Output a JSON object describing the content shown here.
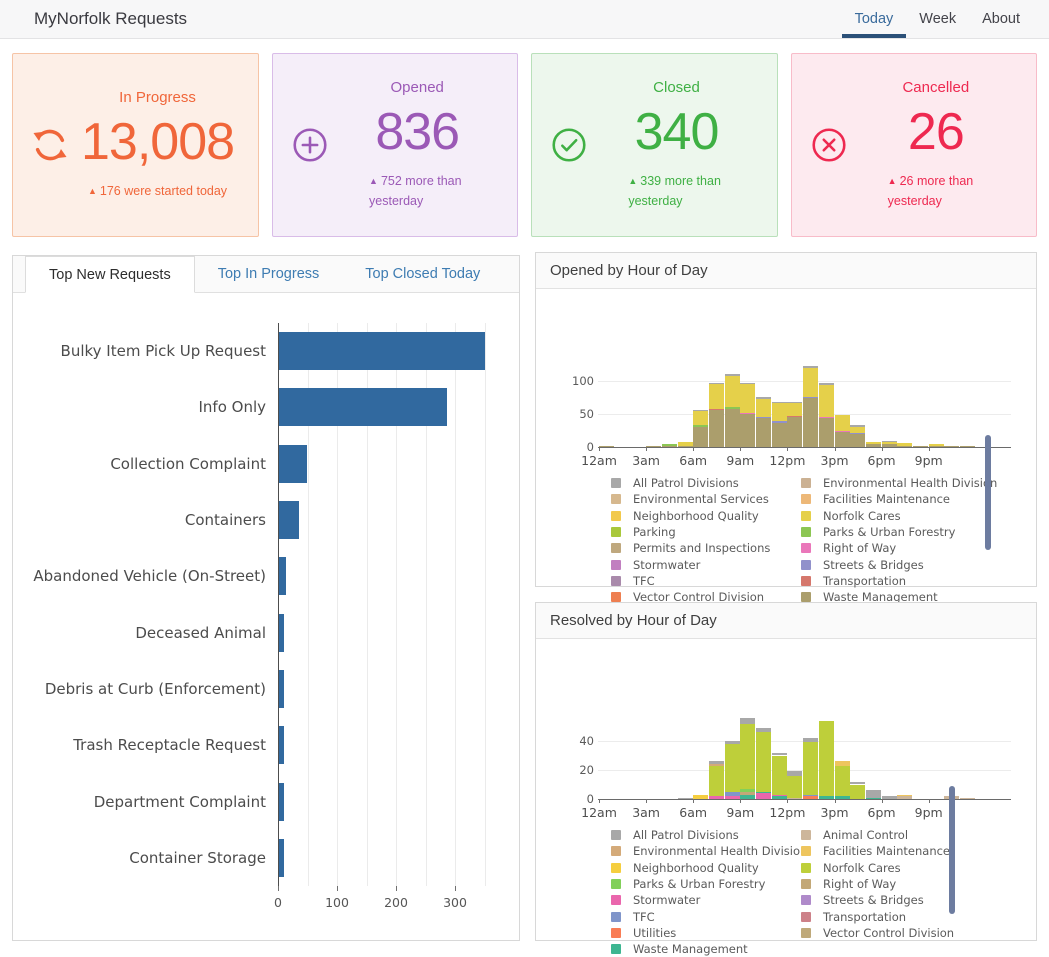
{
  "header": {
    "title": "MyNorfolk Requests",
    "tabs": [
      {
        "label": "Today",
        "active": true
      },
      {
        "label": "Week",
        "active": false
      },
      {
        "label": "About",
        "active": false
      }
    ]
  },
  "cards": [
    {
      "title": "In Progress",
      "value": "13,008",
      "note": "176 were started today",
      "icon": "refresh-icon",
      "color": "#f0663a",
      "bg": "#fdefe7",
      "border": "#f6c4a6"
    },
    {
      "title": "Opened",
      "value": "836",
      "note": "752 more than yesterday",
      "icon": "plus-circle-icon",
      "color": "#9b59b6",
      "bg": "#f5eef9",
      "border": "#d9bce8"
    },
    {
      "title": "Closed",
      "value": "340",
      "note": "339 more than yesterday",
      "icon": "check-circle-icon",
      "color": "#3fb044",
      "bg": "#edf7ed",
      "border": "#b9e0ba"
    },
    {
      "title": "Cancelled",
      "value": "26",
      "note": "26 more than yesterday",
      "icon": "x-circle-icon",
      "color": "#ee2950",
      "bg": "#fdeaef",
      "border": "#f8bcc9"
    }
  ],
  "left_panel": {
    "tabs": [
      {
        "label": "Top New Requests",
        "active": true
      },
      {
        "label": "Top In Progress",
        "active": false
      },
      {
        "label": "Top Closed Today",
        "active": false
      }
    ],
    "chart_data": {
      "type": "bar",
      "orientation": "horizontal",
      "categories": [
        "Bulky Item Pick Up Request",
        "Info Only",
        "Collection Complaint",
        "Containers",
        "Abandoned Vehicle (On-Street)",
        "Deceased Animal",
        "Debris at Curb (Enforcement)",
        "Trash Receptacle Request",
        "Department Complaint",
        "Container Storage"
      ],
      "values": [
        349,
        285,
        47,
        34,
        12,
        9,
        8,
        8,
        8,
        8
      ],
      "x_ticks": [
        0,
        100,
        200,
        300
      ],
      "x_max": 390,
      "grid_step": 50,
      "bar_color": "#31699f"
    }
  },
  "opened_panel": {
    "title": "Opened by Hour of Day",
    "palette": {
      "all_patrol": "#a8a8a8",
      "environmental_services": "#d6b88e",
      "neighborhood_quality": "#f2c94c",
      "parking": "#a9c83b",
      "permits_and_inspections": "#bfa87e",
      "stormwater": "#c17fc0",
      "tfc": "#a98aab",
      "vector_control": "#ee7f51",
      "env_health": "#cbb193",
      "facilities": "#edb878",
      "norfolk_cares": "#e5d04a",
      "parks": "#8cc653",
      "right_of_way": "#ea77ba",
      "streets_bridges": "#9191cb",
      "transportation": "#d5776c",
      "waste_management": "#ab9e6c"
    },
    "legend_columns": [
      [
        {
          "label": "All Patrol Divisions",
          "key": "all_patrol"
        },
        {
          "label": "Environmental Services",
          "key": "environmental_services"
        },
        {
          "label": "Neighborhood Quality",
          "key": "neighborhood_quality"
        },
        {
          "label": "Parking",
          "key": "parking"
        },
        {
          "label": "Permits and Inspections",
          "key": "permits_and_inspections"
        },
        {
          "label": "Stormwater",
          "key": "stormwater"
        },
        {
          "label": "TFC",
          "key": "tfc"
        },
        {
          "label": "Vector Control Division",
          "key": "vector_control"
        }
      ],
      [
        {
          "label": "Environmental Health Division",
          "key": "env_health"
        },
        {
          "label": "Facilities Maintenance",
          "key": "facilities"
        },
        {
          "label": "Norfolk Cares",
          "key": "norfolk_cares"
        },
        {
          "label": "Parks & Urban Forestry",
          "key": "parks"
        },
        {
          "label": "Right of Way",
          "key": "right_of_way"
        },
        {
          "label": "Streets & Bridges",
          "key": "streets_bridges"
        },
        {
          "label": "Transportation",
          "key": "transportation"
        },
        {
          "label": "Waste Management",
          "key": "waste_management"
        }
      ]
    ],
    "chart_data": {
      "type": "bar",
      "stacked": true,
      "x_tick_positions": [
        0,
        3,
        6,
        9,
        12,
        15,
        18,
        21
      ],
      "x_tick_labels": [
        "12am",
        "3am",
        "6am",
        "9am",
        "12pm",
        "3pm",
        "6pm",
        "9pm"
      ],
      "y_ticks": [
        0,
        50,
        100
      ],
      "y_max": 130,
      "bars": [
        [
          [
            "waste_management",
            1
          ]
        ],
        [],
        [],
        [
          [
            "waste_management",
            2
          ]
        ],
        [
          [
            "waste_management",
            1
          ],
          [
            "parks",
            3
          ]
        ],
        [
          [
            "waste_management",
            2
          ],
          [
            "norfolk_cares",
            5
          ]
        ],
        [
          [
            "waste_management",
            31
          ],
          [
            "parks",
            2
          ],
          [
            "norfolk_cares",
            21
          ],
          [
            "all_patrol",
            2
          ]
        ],
        [
          [
            "waste_management",
            56
          ],
          [
            "transportation",
            2
          ],
          [
            "norfolk_cares",
            37
          ],
          [
            "all_patrol",
            2
          ]
        ],
        [
          [
            "waste_management",
            58
          ],
          [
            "parks",
            2
          ],
          [
            "norfolk_cares",
            48
          ],
          [
            "all_patrol",
            3
          ]
        ],
        [
          [
            "waste_management",
            50
          ],
          [
            "right_of_way",
            1
          ],
          [
            "norfolk_cares",
            44
          ],
          [
            "all_patrol",
            2
          ]
        ],
        [
          [
            "waste_management",
            44
          ],
          [
            "streets_bridges",
            2
          ],
          [
            "norfolk_cares",
            26
          ],
          [
            "all_patrol",
            4
          ]
        ],
        [
          [
            "waste_management",
            37
          ],
          [
            "streets_bridges",
            2
          ],
          [
            "norfolk_cares",
            27
          ],
          [
            "all_patrol",
            2
          ]
        ],
        [
          [
            "waste_management",
            45
          ],
          [
            "transportation",
            2
          ],
          [
            "norfolk_cares",
            19
          ],
          [
            "all_patrol",
            2
          ]
        ],
        [
          [
            "waste_management",
            74
          ],
          [
            "streets_bridges",
            2
          ],
          [
            "norfolk_cares",
            44
          ],
          [
            "all_patrol",
            3
          ]
        ],
        [
          [
            "waste_management",
            44
          ],
          [
            "right_of_way",
            2
          ],
          [
            "norfolk_cares",
            48
          ],
          [
            "all_patrol",
            3
          ]
        ],
        [
          [
            "waste_management",
            22
          ],
          [
            "right_of_way",
            2
          ],
          [
            "norfolk_cares",
            24
          ]
        ],
        [
          [
            "waste_management",
            19
          ],
          [
            "streets_bridges",
            2
          ],
          [
            "norfolk_cares",
            9
          ],
          [
            "all_patrol",
            3
          ]
        ],
        [
          [
            "waste_management",
            5
          ],
          [
            "norfolk_cares",
            2
          ]
        ],
        [
          [
            "waste_management",
            4
          ],
          [
            "norfolk_cares",
            3
          ],
          [
            "all_patrol",
            2
          ]
        ],
        [
          [
            "waste_management",
            2
          ],
          [
            "norfolk_cares",
            4
          ]
        ],
        [
          [
            "waste_management",
            1
          ]
        ],
        [
          [
            "waste_management",
            1
          ],
          [
            "norfolk_cares",
            3
          ]
        ],
        [
          [
            "waste_management",
            1
          ]
        ],
        [
          [
            "waste_management",
            2
          ]
        ]
      ]
    }
  },
  "resolved_panel": {
    "title": "Resolved by Hour of Day",
    "palette": {
      "all_patrol": "#a8a8a8",
      "env_health": "#d4aa79",
      "neighborhood_quality": "#f5ce3f",
      "parks": "#82d05a",
      "stormwater": "#ea66ad",
      "tfc": "#8095ca",
      "utilities": "#f97d55",
      "waste_management": "#3eb691",
      "animal_control": "#cdb69b",
      "facilities": "#eec55e",
      "norfolk_cares": "#becf3a",
      "right_of_way": "#c3a877",
      "streets_bridges": "#af8aca",
      "transportation": "#cd8189",
      "vector_control": "#bfa97a"
    },
    "legend_columns": [
      [
        {
          "label": "All Patrol Divisions",
          "key": "all_patrol"
        },
        {
          "label": "Environmental Health Division",
          "key": "env_health"
        },
        {
          "label": "Neighborhood Quality",
          "key": "neighborhood_quality"
        },
        {
          "label": "Parks & Urban Forestry",
          "key": "parks"
        },
        {
          "label": "Stormwater",
          "key": "stormwater"
        },
        {
          "label": "TFC",
          "key": "tfc"
        },
        {
          "label": "Utilities",
          "key": "utilities"
        },
        {
          "label": "Waste Management",
          "key": "waste_management"
        }
      ],
      [
        {
          "label": "Animal Control",
          "key": "animal_control"
        },
        {
          "label": "Facilities Maintenance",
          "key": "facilities"
        },
        {
          "label": "Norfolk Cares",
          "key": "norfolk_cares"
        },
        {
          "label": "Right of Way",
          "key": "right_of_way"
        },
        {
          "label": "Streets & Bridges",
          "key": "streets_bridges"
        },
        {
          "label": "Transportation",
          "key": "transportation"
        },
        {
          "label": "Vector Control Division",
          "key": "vector_control"
        }
      ]
    ],
    "chart_data": {
      "type": "bar",
      "stacked": true,
      "x_tick_positions": [
        0,
        3,
        6,
        9,
        12,
        15,
        18,
        21
      ],
      "x_tick_labels": [
        "12am",
        "3am",
        "6am",
        "9am",
        "12pm",
        "3pm",
        "6pm",
        "9pm"
      ],
      "y_ticks": [
        0,
        20,
        40
      ],
      "y_max": 60,
      "bars": [
        [],
        [],
        [],
        [],
        [],
        [
          [
            "all_patrol",
            1
          ]
        ],
        [
          [
            "neighborhood_quality",
            3
          ]
        ],
        [
          [
            "stormwater",
            2
          ],
          [
            "norfolk_cares",
            21
          ],
          [
            "env_health",
            1
          ],
          [
            "all_patrol",
            2
          ]
        ],
        [
          [
            "stormwater",
            2
          ],
          [
            "tfc",
            3
          ],
          [
            "norfolk_cares",
            33
          ],
          [
            "all_patrol",
            2
          ]
        ],
        [
          [
            "waste_management",
            3
          ],
          [
            "right_of_way",
            2
          ],
          [
            "parks",
            2
          ],
          [
            "norfolk_cares",
            45
          ],
          [
            "all_patrol",
            4
          ]
        ],
        [
          [
            "stormwater",
            4
          ],
          [
            "waste_management",
            1
          ],
          [
            "norfolk_cares",
            41
          ],
          [
            "all_patrol",
            3
          ]
        ],
        [
          [
            "waste_management",
            2
          ],
          [
            "stormwater",
            1
          ],
          [
            "norfolk_cares",
            27
          ],
          [
            "all_patrol",
            2
          ]
        ],
        [
          [
            "animal_control",
            1
          ],
          [
            "norfolk_cares",
            15
          ],
          [
            "all_patrol",
            3
          ]
        ],
        [
          [
            "utilities",
            2
          ],
          [
            "tfc",
            1
          ],
          [
            "norfolk_cares",
            36
          ],
          [
            "all_patrol",
            3
          ]
        ],
        [
          [
            "waste_management",
            2
          ],
          [
            "norfolk_cares",
            52
          ]
        ],
        [
          [
            "waste_management",
            2
          ],
          [
            "norfolk_cares",
            21
          ],
          [
            "facilities",
            3
          ]
        ],
        [
          [
            "norfolk_cares",
            10
          ],
          [
            "all_patrol",
            2
          ]
        ],
        [
          [
            "waste_management",
            1
          ],
          [
            "all_patrol",
            5
          ]
        ],
        [
          [
            "all_patrol",
            2
          ]
        ],
        [
          [
            "animal_control",
            2
          ],
          [
            "facilities",
            1
          ]
        ],
        [],
        [],
        [
          [
            "animal_control",
            2
          ]
        ],
        [
          [
            "animal_control",
            1
          ]
        ]
      ]
    }
  }
}
